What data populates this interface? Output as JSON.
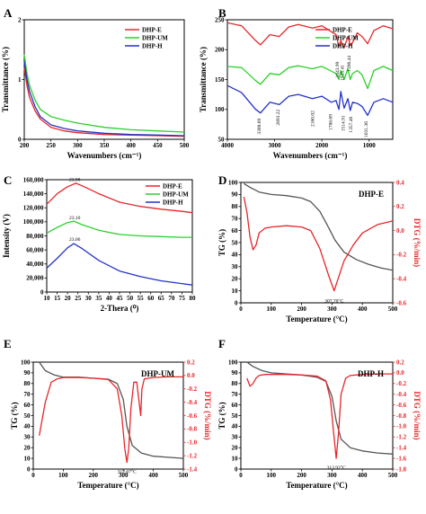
{
  "colors": {
    "e": "#e8262a",
    "um": "#2bd12b",
    "h": "#2432c8",
    "tg": "#555555",
    "dtg": "#e8262a"
  },
  "chart_data": [
    {
      "type": "line",
      "panel": "A",
      "xlabel": "Wavenumbers (cm⁻¹)",
      "ylabel": "Transmittance (%)",
      "xlim": [
        200,
        500
      ],
      "ylim": [
        0,
        2
      ],
      "xticks": [
        "200",
        "250",
        "300",
        "350",
        "400",
        "450",
        "500"
      ],
      "yticks": [
        "0",
        "1",
        "2"
      ],
      "series": [
        {
          "name": "DHP-E",
          "x": [
            200,
            205,
            210,
            220,
            230,
            250,
            275,
            300,
            350,
            400,
            450,
            500
          ],
          "y": [
            1.2,
            0.9,
            0.7,
            0.48,
            0.34,
            0.2,
            0.14,
            0.11,
            0.08,
            0.07,
            0.06,
            0.05
          ]
        },
        {
          "name": "DHP-UM",
          "x": [
            200,
            205,
            210,
            220,
            230,
            250,
            275,
            300,
            350,
            400,
            450,
            500
          ],
          "y": [
            1.42,
            1.1,
            0.9,
            0.66,
            0.5,
            0.38,
            0.32,
            0.27,
            0.2,
            0.16,
            0.14,
            0.12
          ]
        },
        {
          "name": "DHP-H",
          "x": [
            200,
            205,
            210,
            220,
            230,
            250,
            275,
            300,
            350,
            400,
            450,
            500
          ],
          "y": [
            1.3,
            1.0,
            0.8,
            0.55,
            0.38,
            0.24,
            0.18,
            0.14,
            0.1,
            0.08,
            0.07,
            0.06
          ]
        }
      ]
    },
    {
      "type": "line",
      "panel": "B",
      "xlabel": "Wavenumbers (cm⁻¹)",
      "ylabel": "Transmittance (%)",
      "xlim": [
        4000,
        500
      ],
      "ylim": [
        50,
        250
      ],
      "xticks": [
        "4000",
        "3000",
        "2000",
        "1000"
      ],
      "yticks": [
        "50",
        "100",
        "150",
        "200",
        "250"
      ],
      "annotations": [
        "3300.69",
        "2893.22",
        "2160.02",
        "1788.69",
        "1643.99",
        "1535.41",
        "1514.91",
        "1396.44",
        "1031.36",
        "1357.46"
      ],
      "series": [
        {
          "name": "DHP-E",
          "x": [
            4000,
            3700,
            3400,
            3300,
            3100,
            2900,
            2700,
            2500,
            2200,
            2000,
            1800,
            1700,
            1640,
            1600,
            1530,
            1450,
            1400,
            1350,
            1250,
            1150,
            1030,
            900,
            700,
            500
          ],
          "y": [
            245,
            240,
            215,
            208,
            225,
            222,
            238,
            242,
            236,
            240,
            230,
            225,
            205,
            215,
            203,
            222,
            208,
            212,
            228,
            222,
            210,
            232,
            240,
            235
          ]
        },
        {
          "name": "DHP-UM",
          "x": [
            4000,
            3700,
            3400,
            3300,
            3100,
            2900,
            2700,
            2500,
            2200,
            2000,
            1800,
            1700,
            1640,
            1600,
            1530,
            1450,
            1400,
            1350,
            1250,
            1150,
            1030,
            900,
            700,
            500
          ],
          "y": [
            172,
            170,
            148,
            142,
            160,
            158,
            170,
            173,
            168,
            172,
            164,
            160,
            150,
            165,
            150,
            168,
            150,
            160,
            165,
            158,
            135,
            165,
            172,
            165
          ]
        },
        {
          "name": "DHP-H",
          "x": [
            4000,
            3700,
            3400,
            3300,
            3100,
            2900,
            2700,
            2500,
            2200,
            2000,
            1800,
            1700,
            1640,
            1600,
            1530,
            1450,
            1400,
            1350,
            1250,
            1150,
            1030,
            900,
            700,
            500
          ],
          "y": [
            140,
            128,
            100,
            94,
            112,
            108,
            122,
            125,
            118,
            122,
            112,
            115,
            100,
            130,
            102,
            118,
            98,
            112,
            110,
            105,
            90,
            112,
            118,
            112
          ]
        }
      ]
    },
    {
      "type": "line",
      "panel": "C",
      "xlabel": "2-Thera (⁰)",
      "ylabel": "Intensity (V)",
      "xlim": [
        10,
        80
      ],
      "ylim": [
        0,
        160000
      ],
      "xticks": [
        "10",
        "15",
        "20",
        "25",
        "30",
        "35",
        "40",
        "45",
        "50",
        "55",
        "60",
        "65",
        "70",
        "75",
        "80"
      ],
      "yticks": [
        "0",
        "20,000",
        "40,000",
        "60,000",
        "80,000",
        "100,000",
        "120,000",
        "140,000",
        "160,000"
      ],
      "annotations": [
        "23.98",
        "23.10",
        "23.06"
      ],
      "series": [
        {
          "name": "DHP-E",
          "x": [
            10,
            15,
            20,
            24,
            28,
            35,
            45,
            55,
            65,
            75,
            80
          ],
          "y": [
            125000,
            140000,
            150000,
            155000,
            150000,
            140000,
            128000,
            122000,
            118000,
            115000,
            113000
          ]
        },
        {
          "name": "DHP-UM",
          "x": [
            10,
            15,
            20,
            23,
            27,
            35,
            45,
            55,
            65,
            75,
            80
          ],
          "y": [
            84000,
            92000,
            99000,
            101000,
            96000,
            88000,
            82000,
            80000,
            79000,
            78000,
            78000
          ]
        },
        {
          "name": "DHP-H",
          "x": [
            10,
            15,
            20,
            23,
            27,
            35,
            45,
            55,
            65,
            75,
            80
          ],
          "y": [
            34000,
            48000,
            63000,
            69000,
            62000,
            45000,
            30000,
            22000,
            16000,
            12000,
            10000
          ]
        }
      ]
    },
    {
      "type": "line",
      "panel": "D",
      "title": "DHP-E",
      "xlabel": "Temperature (°C)",
      "ylabel": "TG (%)",
      "y2label": "DTG (%/min)",
      "xlim": [
        0,
        500
      ],
      "ylim": [
        0,
        100
      ],
      "y2lim": [
        -0.6,
        0.4
      ],
      "xticks": [
        "0",
        "100",
        "200",
        "300",
        "400",
        "500"
      ],
      "yticks": [
        "0",
        "10",
        "20",
        "30",
        "40",
        "50",
        "60",
        "70",
        "80",
        "90",
        "100"
      ],
      "y2ticks": [
        "0.4",
        "0.2",
        "0.0",
        "-0.2",
        "-0.4",
        "-0.6"
      ],
      "annotations": [
        "307.70°C"
      ],
      "series": [
        {
          "name": "TG",
          "axis": "left",
          "x": [
            10,
            30,
            60,
            100,
            150,
            200,
            230,
            260,
            290,
            310,
            340,
            380,
            420,
            460,
            500
          ],
          "y": [
            99,
            96,
            92,
            90,
            89,
            87,
            84,
            76,
            62,
            52,
            42,
            36,
            32,
            29,
            27
          ]
        },
        {
          "name": "DTG",
          "axis": "right",
          "x": [
            10,
            20,
            30,
            40,
            50,
            60,
            80,
            100,
            150,
            200,
            230,
            260,
            290,
            307,
            320,
            340,
            370,
            400,
            450,
            500
          ],
          "y": [
            0.28,
            0.15,
            -0.05,
            -0.16,
            -0.12,
            -0.02,
            0.02,
            0.03,
            0.04,
            0.03,
            0.0,
            -0.15,
            -0.38,
            -0.5,
            -0.4,
            -0.25,
            -0.12,
            -0.02,
            0.05,
            0.08
          ]
        }
      ]
    },
    {
      "type": "line",
      "panel": "E",
      "title": "DHP-UM",
      "xlabel": "Temperature (°C)",
      "ylabel": "TG (%)",
      "y2label": "DTG (%/min)",
      "xlim": [
        0,
        500
      ],
      "ylim": [
        0,
        100
      ],
      "y2lim": [
        -1.4,
        0.2
      ],
      "xticks": [
        "0",
        "100",
        "200",
        "300",
        "400",
        "500"
      ],
      "yticks": [
        "0",
        "10",
        "20",
        "30",
        "40",
        "50",
        "60",
        "70",
        "80",
        "90",
        "100"
      ],
      "y2ticks": [
        "0.2",
        "0.0",
        "-0.2",
        "-0.4",
        "-0.6",
        "-0.8",
        "-1.0",
        "-1.2",
        "-1.4"
      ],
      "annotations": [
        "312.67°C"
      ],
      "series": [
        {
          "name": "TG",
          "axis": "left",
          "x": [
            20,
            40,
            70,
            100,
            150,
            200,
            250,
            280,
            300,
            312,
            330,
            360,
            400,
            450,
            500
          ],
          "y": [
            100,
            92,
            88,
            86,
            86,
            85,
            84,
            80,
            65,
            40,
            22,
            15,
            12,
            11,
            10
          ]
        },
        {
          "name": "DTG",
          "axis": "right",
          "x": [
            20,
            40,
            60,
            80,
            100,
            150,
            200,
            250,
            280,
            295,
            305,
            312,
            318,
            325,
            335,
            345,
            350,
            358,
            362,
            370,
            400,
            450,
            500
          ],
          "y": [
            -0.9,
            -0.4,
            -0.1,
            -0.05,
            -0.03,
            -0.03,
            -0.04,
            -0.06,
            -0.2,
            -0.6,
            -1.1,
            -1.3,
            -1.1,
            -0.5,
            -0.1,
            -0.1,
            -0.3,
            -0.6,
            -0.2,
            -0.05,
            -0.03,
            -0.02,
            -0.02
          ]
        }
      ]
    },
    {
      "type": "line",
      "panel": "F",
      "title": "DHP-H",
      "xlabel": "Temperature (°C)",
      "ylabel": "TG (%)",
      "y2label": "DTG (%/min)",
      "xlim": [
        0,
        500
      ],
      "ylim": [
        0,
        100
      ],
      "y2lim": [
        -1.8,
        0.2
      ],
      "xticks": [
        "0",
        "100",
        "200",
        "300",
        "400",
        "500"
      ],
      "yticks": [
        "0",
        "10",
        "20",
        "30",
        "40",
        "50",
        "60",
        "70",
        "80",
        "90",
        "100"
      ],
      "y2ticks": [
        "0.2",
        "0.0",
        "-0.2",
        "-0.4",
        "-0.6",
        "-0.8",
        "-1.0",
        "-1.2",
        "-1.4",
        "-1.6",
        "-1.8"
      ],
      "annotations": [
        "313.92°C"
      ],
      "series": [
        {
          "name": "TG",
          "axis": "left",
          "x": [
            20,
            40,
            70,
            100,
            150,
            200,
            250,
            280,
            300,
            314,
            330,
            360,
            400,
            450,
            500
          ],
          "y": [
            100,
            96,
            92,
            90,
            89,
            88,
            86,
            82,
            68,
            45,
            28,
            20,
            17,
            15,
            14
          ]
        },
        {
          "name": "DTG",
          "axis": "right",
          "x": [
            20,
            30,
            40,
            50,
            60,
            80,
            100,
            150,
            200,
            250,
            280,
            295,
            305,
            314,
            322,
            330,
            345,
            360,
            400,
            450,
            500
          ],
          "y": [
            -0.1,
            -0.25,
            -0.2,
            -0.1,
            -0.05,
            -0.03,
            -0.03,
            -0.03,
            -0.04,
            -0.06,
            -0.15,
            -0.5,
            -1.1,
            -1.6,
            -1.1,
            -0.4,
            -0.1,
            -0.05,
            -0.03,
            -0.02,
            -0.02
          ]
        }
      ]
    }
  ]
}
